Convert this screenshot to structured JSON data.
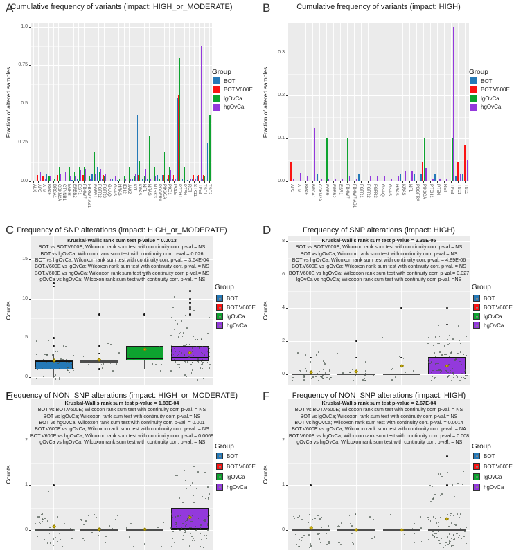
{
  "figure": {
    "legend_title": "Group",
    "groups": [
      "BOT",
      "BOT.V600E",
      "lgOvCa",
      "hgOvCa"
    ],
    "group_colors": {
      "BOT": "#2579B7",
      "BOT.V600E": "#FA1413",
      "lgOvCa": "#0DA32F",
      "hgOvCa": "#9339DC"
    },
    "panel_bg": "#EBEBEB",
    "grid_color": "#FFFFFF",
    "jitter_color": "#4A564E",
    "outlier_color": "#1A1A1A",
    "mean_marker_color": "#DBBA0C"
  },
  "chart_data": [
    {
      "panel": "A",
      "type": "bar",
      "title": "Cumulative frequency of variants (impact: HIGH_or_MODERATE)",
      "ylabel": "Fraction of altered samples",
      "yticks": [
        0,
        0.25,
        0.5,
        0.75,
        1.0
      ],
      "ytick_labels": [
        "0.0",
        "0.25",
        "0.5",
        "0.75",
        "1.0"
      ],
      "ymax": 1.0,
      "categories": [
        "ALK",
        "APC",
        "ATM",
        "BRAF",
        "BRCA1",
        "CDKN2A",
        "CTNNB1",
        "EGFR",
        "ERBB2",
        "ESR1",
        "FBXW7",
        "FBXW7-AS1",
        "FGFR1",
        "FGFR2",
        "FGFR3",
        "GNAQ",
        "GNAS",
        "HRAS",
        "IDH2",
        "JAK2",
        "KIT",
        "KRAS",
        "NF1",
        "NRAS",
        "NTRK3",
        "PDGFRA",
        "PIK3CA",
        "PKD1",
        "POLE",
        "PTCH1",
        "PTEN",
        "RET",
        "STK11",
        "TP53",
        "TSC1",
        "TSC2"
      ],
      "series": [
        {
          "name": "BOT",
          "values": [
            0,
            0.01,
            0.01,
            0.05,
            0,
            0.02,
            0.01,
            0.02,
            0.01,
            0.02,
            0,
            0.02,
            0.05,
            0.09,
            0.02,
            0,
            0.02,
            0.01,
            0,
            0.01,
            0.02,
            0.43,
            0.02,
            0.02,
            0,
            0.04,
            0.04,
            0.02,
            0.02,
            0.54,
            0.02,
            0.01,
            0.02,
            0.03,
            0.02,
            0.25
          ]
        },
        {
          "name": "BOT.V600E",
          "values": [
            0,
            0.04,
            0.03,
            1.0,
            0.04,
            0.04,
            0,
            0,
            0.04,
            0.04,
            0.04,
            0,
            0,
            0.04,
            0.04,
            0,
            0,
            0,
            0,
            0,
            0,
            0.04,
            0,
            0,
            0,
            0,
            0.04,
            0.04,
            0.04,
            0.56,
            0,
            0,
            0.04,
            0.04,
            0.04,
            0.22
          ]
        },
        {
          "name": "lgOvCa",
          "values": [
            0,
            0.09,
            0.09,
            0.03,
            0.02,
            0.09,
            0.02,
            0.09,
            0.06,
            0.09,
            0.09,
            0.03,
            0.19,
            0.06,
            0.03,
            0,
            0,
            0.02,
            0.03,
            0.09,
            0.03,
            0.13,
            0.03,
            0.29,
            0.09,
            0.02,
            0.19,
            0.09,
            0.09,
            0.8,
            0.09,
            0,
            0.02,
            0.3,
            0.03,
            0.43
          ]
        },
        {
          "name": "hgOvCa",
          "values": [
            0.025,
            0.065,
            0.02,
            0.03,
            0.19,
            0.05,
            0.06,
            0.03,
            0.03,
            0.07,
            0.08,
            0.02,
            0.05,
            0.08,
            0.05,
            0.02,
            0.03,
            0.01,
            0.02,
            0.02,
            0.05,
            0.12,
            0.08,
            0.02,
            0.03,
            0.08,
            0.09,
            0.07,
            0.02,
            0.56,
            0.07,
            0.02,
            0.02,
            0.88,
            0.02,
            0.27
          ]
        }
      ]
    },
    {
      "panel": "B",
      "type": "bar",
      "title": "Cumulative frequency of variants (impact: HIGH)",
      "ylabel": "Fraction of altered samples",
      "yticks": [
        0,
        0.1,
        0.2,
        0.3
      ],
      "ytick_labels": [
        "0.0",
        "0.1",
        "0.2",
        "0.3"
      ],
      "ymax": 0.36,
      "categories": [
        "APC",
        "ATM",
        "BRAF",
        "BRCA1",
        "CDKN2A",
        "EGFR",
        "ERBB2",
        "ESR1",
        "FBXW7",
        "FBXW7-AS1",
        "FGFR1",
        "FGFR2",
        "FGFR3",
        "GNAQ",
        "GNAS",
        "HRAS",
        "KRAS",
        "NF1",
        "PDGFRA",
        "PIK3CA",
        "PTCH1",
        "PTEN",
        "RET",
        "TP53",
        "TSC1",
        "TSC2"
      ],
      "series": [
        {
          "name": "BOT",
          "values": [
            0,
            0,
            0,
            0,
            0.017,
            0,
            0,
            0,
            0,
            0,
            0.017,
            0,
            0,
            0,
            0,
            0,
            0.017,
            0,
            0.017,
            0.017,
            0,
            0.017,
            0,
            0,
            0.013,
            0.017
          ]
        },
        {
          "name": "BOT.V600E",
          "values": [
            0.045,
            0,
            0,
            0,
            0,
            0,
            0,
            0,
            0,
            0,
            0,
            0,
            0,
            0,
            0,
            0,
            0,
            0,
            0,
            0.045,
            0,
            0,
            0,
            0,
            0.045,
            0.085
          ]
        },
        {
          "name": "lgOvCa",
          "values": [
            0,
            0,
            0,
            0,
            0,
            0.1,
            0,
            0,
            0.1,
            0,
            0,
            0,
            0,
            0,
            0,
            0,
            0,
            0,
            0,
            0.1,
            0,
            0,
            0,
            0.1,
            0,
            0
          ]
        },
        {
          "name": "hgOvCa",
          "values": [
            0.005,
            0.02,
            0.012,
            0.125,
            0.005,
            0.005,
            0.005,
            0.005,
            0.012,
            0.005,
            0,
            0.012,
            0.012,
            0.012,
            0.005,
            0.012,
            0.025,
            0.025,
            0,
            0.03,
            0.005,
            0.005,
            0.005,
            0.36,
            0.017,
            0.05
          ]
        }
      ]
    },
    {
      "panel": "C",
      "type": "box",
      "title": "Frequency of SNP alterations (impact: HIGH_or_MODERATE)",
      "ylabel": "Counts",
      "yticks": [
        0,
        5,
        10,
        15
      ],
      "ytick_labels": [
        "0",
        "5",
        "10",
        "15"
      ],
      "stats_header": "Kruskal-Wallis rank sum test p-value = 0.0013",
      "stats_lines": [
        "BOT vs BOT.V600E; Wilcoxon rank sum test with continuity corr. p-val.= NS",
        "BOT vs lgOvCa; Wilcoxon rank sum test with continuity corr. p-val.= 0.026",
        "BOT vs hgOvCa; Wilcoxon rank sum test with continuity corr. p-val. = 3.54E-04",
        "BOT.V600E vs lgOvCa; Wilcoxon rank sum test with continuity corr. p-val. = NS",
        "BOT.V600E vs hgOvCa; Wilcoxon rank sum test with continuity corr. p-val.= NS",
        "lgOvCa vs hgOvCa; Wilcoxon rank sum test with continuity corr. p-val. = NS"
      ],
      "boxes": [
        {
          "name": "BOT",
          "q1": 1,
          "median": 2,
          "q3": 2.1,
          "whisker_low": 0,
          "whisker_high": 3,
          "mean": 2.1,
          "outliers": [
            4,
            5,
            11.6,
            12
          ],
          "points": {
            "0": 8,
            "1": 16,
            "2": 18,
            "3": 8,
            "4": 2,
            "5": 2
          }
        },
        {
          "name": "BOT.V600E",
          "q1": 1.95,
          "median": 2,
          "q3": 2.08,
          "whisker_low": 1.95,
          "whisker_high": 2.08,
          "mean": 2.2,
          "outliers": [
            1,
            3,
            4,
            8
          ],
          "points": {
            "1": 3,
            "2": 15,
            "3": 4,
            "4": 2
          }
        },
        {
          "name": "lgOvCa",
          "q1": 2.1,
          "median": 2.4,
          "q3": 4,
          "whisker_low": 1,
          "whisker_high": 4,
          "mean": 3.5,
          "outliers": [
            8,
            13
          ],
          "points": {
            "1": 2,
            "2": 4,
            "3": 3,
            "4": 3
          }
        },
        {
          "name": "hgOvCa",
          "q1": 2,
          "median": 2.5,
          "q3": 4,
          "whisker_low": 0,
          "whisker_high": 7,
          "mean": 3.1,
          "outliers": [
            8,
            8.7,
            9,
            9.5,
            10,
            11
          ],
          "points": {
            "0": 6,
            "1": 10,
            "2": 28,
            "3": 26,
            "4": 22,
            "5": 12,
            "6": 8,
            "7": 5,
            "8": 3,
            "9": 2,
            "10": 1
          }
        }
      ]
    },
    {
      "panel": "D",
      "type": "box",
      "title": "Frequency of SNP alterations (impact: HIGH)",
      "ylabel": "Counts",
      "yticks": [
        0,
        2,
        4,
        6,
        8
      ],
      "ytick_labels": [
        "0",
        "2",
        "4",
        "6",
        "8"
      ],
      "stats_header": "Kruskal-Wallis rank sum test p-value = 2.35E-05",
      "stats_lines": [
        "BOT vs BOT.V600E; Wilcoxon rank sum test with continuity corr. p-val.= NS",
        "BOT vs lgOvCa; Wilcoxon rank sum test with continuity corr. p-val.= NS",
        "BOT vs hgOvCa; Wilcoxon rank sum test with continuity corr. p-val. = 4.89E-06",
        "BOT.V600E vs lgOvCa; Wilcoxon rank sum test with continuity corr. p-val. = NS",
        "BOT.V600E vs hgOvCa; Wilcoxon rank sum test with continuity corr. p-val.= 0.027",
        "lgOvCa vs hgOvCa; Wilcoxon rank sum test with continuity corr. p-val. =NS"
      ],
      "boxes": [
        {
          "name": "BOT",
          "q1": 0,
          "median": 0,
          "q3": 0,
          "whisker_low": 0,
          "whisker_high": 0,
          "mean": 0.1,
          "outliers": [
            1
          ],
          "points": {
            "0": 42,
            "1": 10,
            "1.4": 1
          }
        },
        {
          "name": "BOT.V600E",
          "q1": 0,
          "median": 0,
          "q3": 0,
          "whisker_low": 0,
          "whisker_high": 0,
          "mean": 0.15,
          "outliers": [
            1,
            2
          ],
          "points": {
            "0": 20,
            "1": 3
          }
        },
        {
          "name": "lgOvCa",
          "q1": 0,
          "median": 0,
          "q3": 0,
          "whisker_low": 0,
          "whisker_high": 0,
          "mean": 0.5,
          "outliers": [
            1,
            4
          ],
          "points": {
            "0": 9,
            "1": 2,
            "2": 1
          }
        },
        {
          "name": "hgOvCa",
          "q1": 0,
          "median": 1,
          "q3": 1,
          "whisker_low": 0,
          "whisker_high": 2,
          "mean": 0.5,
          "outliers": [
            3,
            4,
            6
          ],
          "points": {
            "0": 52,
            "1": 42,
            "2": 16,
            "3": 3,
            "3.5": 1
          }
        }
      ]
    },
    {
      "panel": "E",
      "type": "box",
      "title": "Frequency of NON_SNP alterations (impact: HIGH_or_MODERATE)",
      "ylabel": "Counts",
      "yticks": [
        0,
        1,
        2
      ],
      "ytick_labels": [
        "0",
        "1",
        "2"
      ],
      "stats_header": "Kruskal-Wallis rank sum test p-value = 1.83E-04",
      "stats_lines": [
        "BOT vs BOT.V600E; Wilcoxon rank sum test with continuity corr. p-val. = NS",
        "BOT vs lgOvCa; Wilcoxon rank sum test with continuity corr. p-val.= NS",
        "BOT vs hgOvCa; Wilcoxon rank sum test with continuity corr. p-val. = 0.001",
        "BOT.V600E vs lgOvCa; Wilcoxon rank sum test with continuity corr. p-val. = NS",
        "BOT.V600E vs hgOvCa; Wilcoxon rank sum test with continuity corr. p-val.= 0.0069",
        "lgOvCa vs hgOvCa; Wilcoxon rank sum test with continuity corr. p-val. = NS"
      ],
      "boxes": [
        {
          "name": "BOT",
          "q1": 0,
          "median": 0,
          "q3": 0,
          "whisker_low": 0,
          "whisker_high": 0,
          "mean": 0.08,
          "outliers": [
            1
          ],
          "points": {
            "0": 48,
            "1": 1,
            "1.9": 1
          }
        },
        {
          "name": "BOT.V600E",
          "q1": 0,
          "median": 0,
          "q3": 0,
          "whisker_low": 0,
          "whisker_high": 0,
          "mean": 0.02,
          "outliers": [],
          "points": {
            "0": 24
          }
        },
        {
          "name": "lgOvCa",
          "q1": 0,
          "median": 0,
          "q3": 0,
          "whisker_low": 0,
          "whisker_high": 0,
          "mean": 0.02,
          "outliers": [],
          "points": {
            "0": 12
          }
        },
        {
          "name": "hgOvCa",
          "q1": 0,
          "median": 0.03,
          "q3": 0.5,
          "whisker_low": 0,
          "whisker_high": 1,
          "mean": 0.28,
          "outliers": [],
          "points": {
            "0": 85,
            "1": 30,
            "1.4": 2
          }
        }
      ]
    },
    {
      "panel": "F",
      "type": "box",
      "title": "Frequency of NON_SNP alterations (impact: HIGH)",
      "ylabel": "Counts",
      "yticks": [
        0,
        1,
        2
      ],
      "ytick_labels": [
        "0",
        "1",
        "2"
      ],
      "stats_header": "Kruskal-Wallis rank sum test p-value = 2.67E-04",
      "stats_lines": [
        "BOT vs BOT.V600E; Wilcoxon rank sum test with continuity corr. p-val. = NS",
        "BOT vs lgOvCa; Wilcoxon rank sum test with continuity corr. p-val.= NS",
        "BOT vs hgOvCa; Wilcoxon rank sum test with continuity corr. p-val. = 0.0014",
        "BOT.V600E vs lgOvCa; Wilcoxon rank sum test with continuity corr. p-val. = NA",
        "BOT.V600E vs hgOvCa; Wilcoxon rank sum test with continuity corr. p-val.= 0.008",
        "lgOvCa vs hgOvCa; Wilcoxon rank sum test with continuity corr. p-val. = NS"
      ],
      "boxes": [
        {
          "name": "BOT",
          "q1": 0,
          "median": 0,
          "q3": 0,
          "whisker_low": 0,
          "whisker_high": 0,
          "mean": 0.05,
          "outliers": [
            1
          ],
          "points": {
            "0": 50,
            "1": 1
          }
        },
        {
          "name": "BOT.V600E",
          "q1": 0,
          "median": 0,
          "q3": 0,
          "whisker_low": 0,
          "whisker_high": 0,
          "mean": 0,
          "outliers": [],
          "points": {
            "0": 24
          }
        },
        {
          "name": "lgOvCa",
          "q1": 0,
          "median": 0,
          "q3": 0,
          "whisker_low": 0,
          "whisker_high": 0,
          "mean": 0,
          "outliers": [],
          "points": {
            "0": 12
          }
        },
        {
          "name": "hgOvCa",
          "q1": 0,
          "median": 0,
          "q3": 0.03,
          "whisker_low": 0,
          "whisker_high": 0,
          "mean": 0.25,
          "outliers": [
            1,
            1.65,
            2
          ],
          "points": {
            "0": 85,
            "1": 22,
            "0.9": 3
          }
        }
      ]
    }
  ]
}
